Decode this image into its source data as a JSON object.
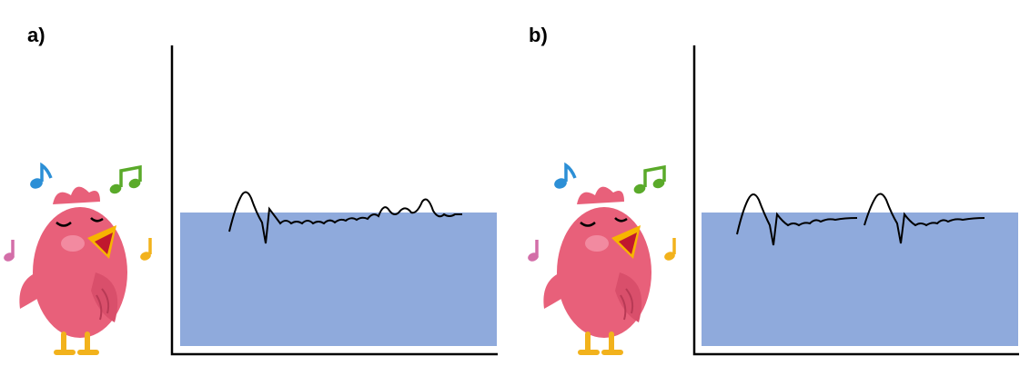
{
  "panels": [
    {
      "label": "a)"
    },
    {
      "label": "b)"
    }
  ],
  "icons": {
    "bird": "singing-bird-icon",
    "notes": [
      "music-note-icon",
      "music-note-icon",
      "music-note-icon",
      "music-note-icon"
    ]
  },
  "colors": {
    "water": "#8faadc",
    "axis": "#000000",
    "bird_body": "#e8607a",
    "bird_cheek": "#f28aa0",
    "beak": "#f7b500",
    "note_blue": "#2c8fd6",
    "note_green": "#5aaa2a",
    "note_yellow": "#f2b21c",
    "note_pink": "#d36ea8"
  }
}
